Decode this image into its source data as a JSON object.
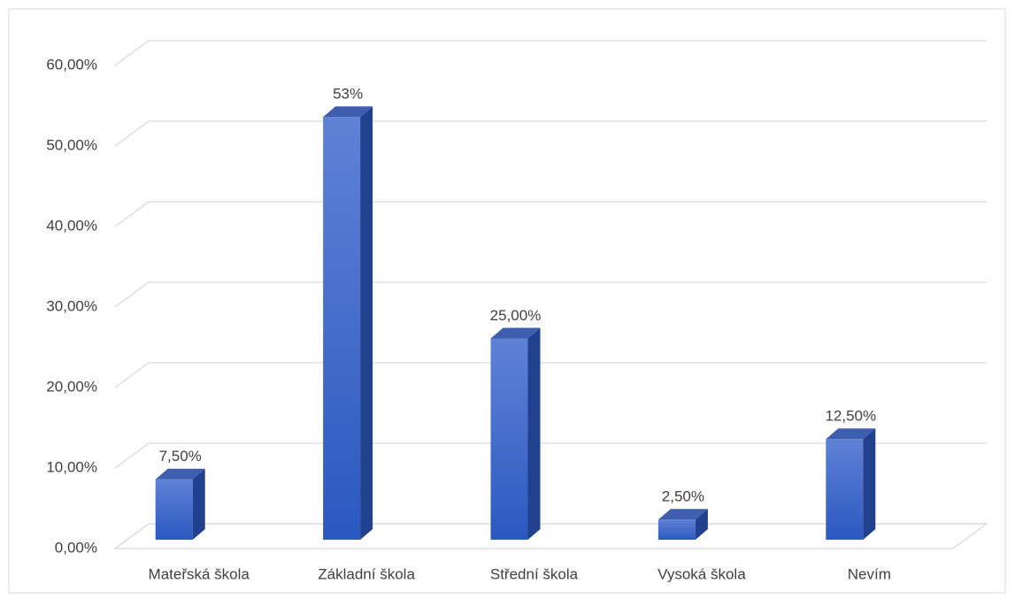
{
  "chart_data": {
    "type": "bar3d",
    "categories": [
      "Mateřská škola",
      "Základní škola",
      "Střední škola",
      "Vysoká škola",
      "Nevím"
    ],
    "values": [
      7.5,
      52.5,
      25,
      2.5,
      12.5
    ],
    "value_labels": [
      "7,50%",
      "53%",
      "25,00%",
      "2,50%",
      "12,50%"
    ],
    "color": "#3a64c8",
    "ylim": [
      0,
      60
    ],
    "yticks": [
      {
        "value": 0,
        "label": "0,00%"
      },
      {
        "value": 10,
        "label": "10,00%"
      },
      {
        "value": 20,
        "label": "20,00%"
      },
      {
        "value": 30,
        "label": "30,00%"
      },
      {
        "value": 40,
        "label": "40,00%"
      },
      {
        "value": 50,
        "label": "50,00%"
      },
      {
        "value": 60,
        "label": "60,00%"
      }
    ],
    "grid": true
  }
}
